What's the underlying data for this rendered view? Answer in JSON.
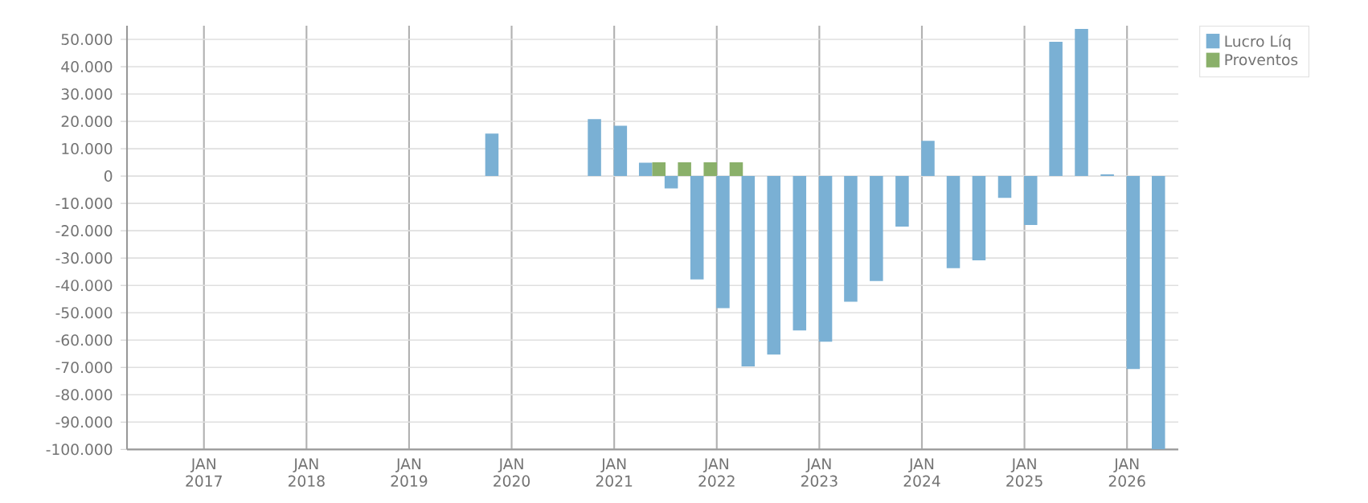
{
  "chart_data": {
    "type": "bar",
    "x": [
      "2019-11-15",
      "2020-11-15",
      "2021-02-15",
      "2021-05-15",
      "2021-08-15",
      "2021-11-15",
      "2022-02-15",
      "2022-05-15",
      "2022-08-15",
      "2022-11-15",
      "2023-02-15",
      "2023-05-15",
      "2023-08-15",
      "2023-11-15",
      "2024-02-15",
      "2024-05-15",
      "2024-08-15",
      "2024-11-15",
      "2025-02-15",
      "2025-05-15",
      "2025-08-15",
      "2025-11-15",
      "2026-02-15",
      "2026-05-15"
    ],
    "series": [
      {
        "name": "Lucro Líq",
        "color": "#7ab0d4",
        "values": [
          15500,
          20800,
          18400,
          4900,
          -4500,
          -37800,
          -48300,
          -69600,
          -65300,
          -56500,
          -60600,
          -46000,
          -38400,
          -18500,
          12900,
          -33700,
          -30800,
          -8000,
          -17900,
          49100,
          53800,
          600,
          -70600,
          -100000
        ]
      },
      {
        "name": "Proventos",
        "color": "#8ab06a",
        "values": [
          0,
          0,
          0,
          5000,
          5000,
          5000,
          5000,
          0,
          0,
          0,
          0,
          0,
          0,
          0,
          0,
          0,
          0,
          0,
          0,
          0,
          0,
          0,
          0,
          0
        ]
      }
    ],
    "xlim": [
      "2016-04",
      "2026-07"
    ],
    "xticks": [
      {
        "value": "2017-01",
        "label": "JAN 2017"
      },
      {
        "value": "2018-01",
        "label": "JAN 2018"
      },
      {
        "value": "2019-01",
        "label": "JAN 2019"
      },
      {
        "value": "2020-01",
        "label": "JAN 2020"
      },
      {
        "value": "2021-01",
        "label": "JAN 2021"
      },
      {
        "value": "2022-01",
        "label": "JAN 2022"
      },
      {
        "value": "2023-01",
        "label": "JAN 2023"
      },
      {
        "value": "2024-01",
        "label": "JAN 2024"
      },
      {
        "value": "2025-01",
        "label": "JAN 2025"
      },
      {
        "value": "2026-01",
        "label": "JAN 2026"
      }
    ],
    "ylim": [
      -100000,
      55000
    ],
    "yticks": [
      {
        "value": 50000,
        "label": "50.000"
      },
      {
        "value": 40000,
        "label": "40.000"
      },
      {
        "value": 30000,
        "label": "30.000"
      },
      {
        "value": 20000,
        "label": "20.000"
      },
      {
        "value": 10000,
        "label": "10.000"
      },
      {
        "value": 0,
        "label": "0"
      },
      {
        "value": -10000,
        "label": "-10.000"
      },
      {
        "value": -20000,
        "label": "-20.000"
      },
      {
        "value": -30000,
        "label": "-30.000"
      },
      {
        "value": -40000,
        "label": "-40.000"
      },
      {
        "value": -50000,
        "label": "-50.000"
      },
      {
        "value": -60000,
        "label": "-60.000"
      },
      {
        "value": -70000,
        "label": "-70.000"
      },
      {
        "value": -80000,
        "label": "-80.000"
      },
      {
        "value": -90000,
        "label": "-90.000"
      },
      {
        "value": -100000,
        "label": "-100.000"
      }
    ],
    "grid": true,
    "legend": "top right"
  }
}
